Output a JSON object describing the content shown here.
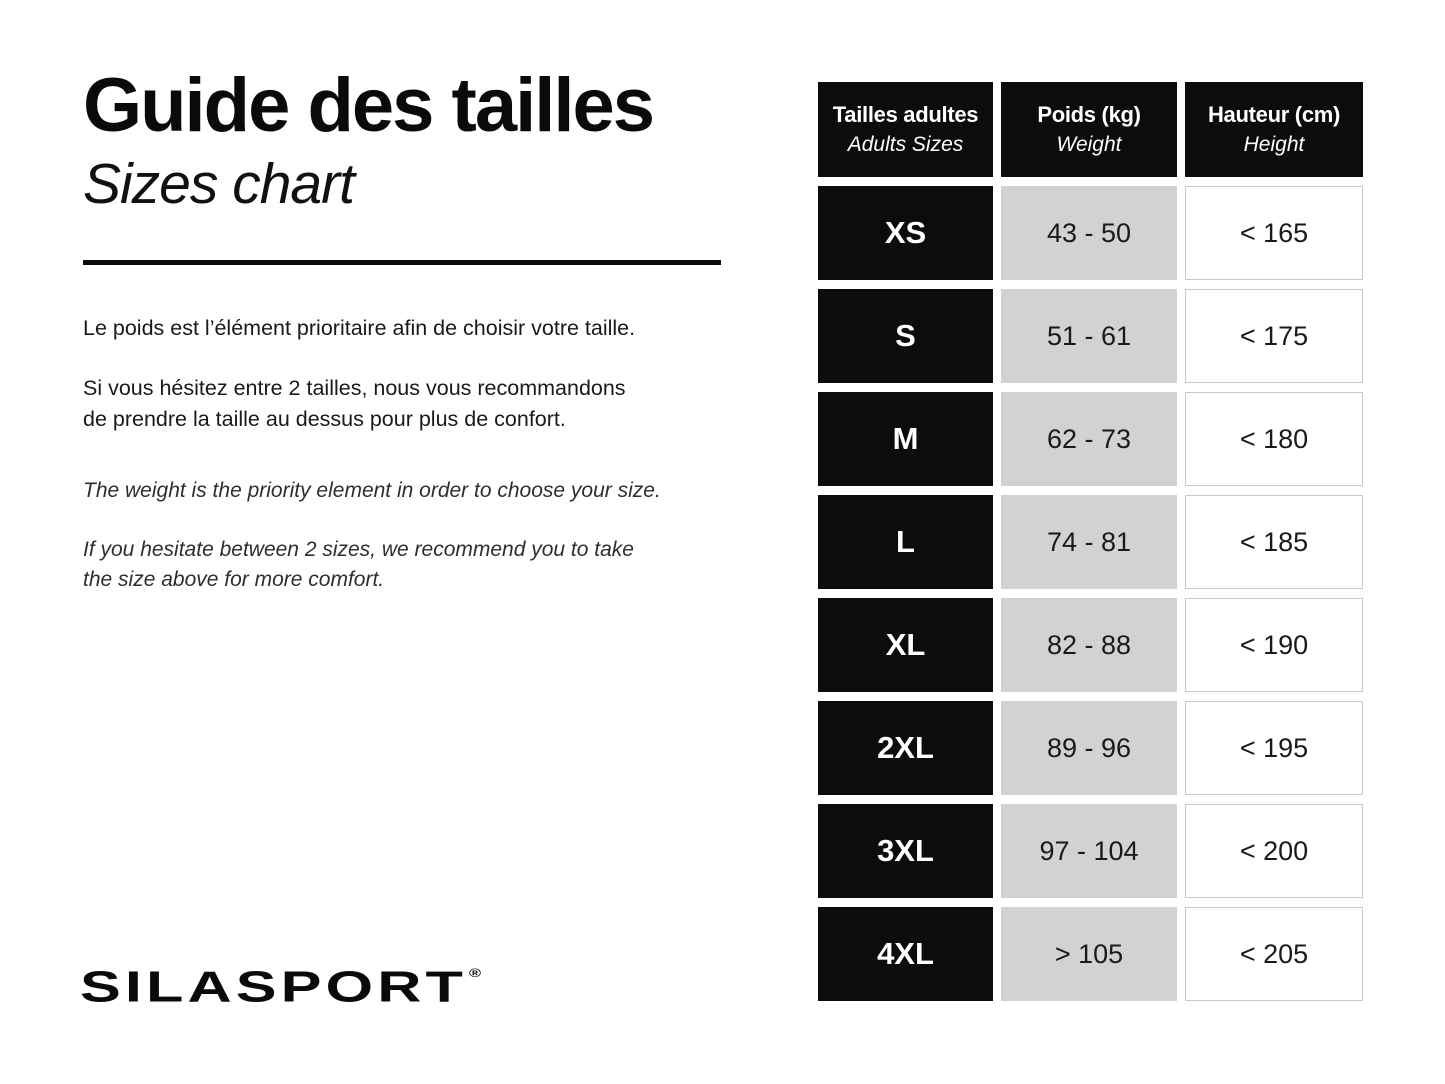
{
  "page": {
    "title": "Guide des tailles",
    "subtitle": "Sizes chart",
    "brand": "SILASPORT",
    "registered_mark": "®"
  },
  "paragraphs": {
    "fr1": "Le poids est l’élément prioritaire afin de choisir votre taille.",
    "fr2a": "Si vous hésitez entre 2 tailles, nous vous recommandons",
    "fr2b": "de prendre la taille au dessus pour plus de confort.",
    "en1": "The weight is the priority element in order to choose your size.",
    "en2a": "If you hesitate between 2 sizes, we recommend you to take",
    "en2b": "the size above for more comfort."
  },
  "table": {
    "headers": [
      {
        "main": "Tailles adultes",
        "sub": "Adults Sizes"
      },
      {
        "main": "Poids (kg)",
        "sub": "Weight"
      },
      {
        "main": "Hauteur (cm)",
        "sub": "Height"
      }
    ],
    "rows": [
      {
        "size": "XS",
        "weight": "43 - 50",
        "height": "< 165"
      },
      {
        "size": "S",
        "weight": "51 - 61",
        "height": "< 175"
      },
      {
        "size": "M",
        "weight": "62 - 73",
        "height": "< 180"
      },
      {
        "size": "L",
        "weight": "74 - 81",
        "height": "< 185"
      },
      {
        "size": "XL",
        "weight": "82 - 88",
        "height": "< 190"
      },
      {
        "size": "2XL",
        "weight": "89 - 96",
        "height": "< 195"
      },
      {
        "size": "3XL",
        "weight": "97 - 104",
        "height": "< 200"
      },
      {
        "size": "4XL",
        "weight": "> 105",
        "height": "< 205"
      }
    ]
  },
  "colors": {
    "black_cell": "#0c0c0c",
    "gray_cell": "#d2d2d2",
    "white_cell_border": "#c9c9c9",
    "background": "#ffffff"
  }
}
